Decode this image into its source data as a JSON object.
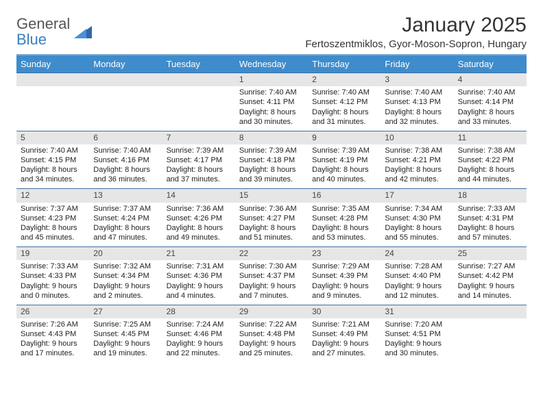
{
  "brand": {
    "word1": "General",
    "word2": "Blue"
  },
  "title": "January 2025",
  "location": "Fertoszentmiklos, Gyor-Moson-Sopron, Hungary",
  "colors": {
    "header_bg": "#3e8ccc",
    "header_text": "#ffffff",
    "daybar_bg": "#e6e6e6",
    "rule": "#3e6fa0",
    "brand_accent": "#3a7fbf"
  },
  "fonts": {
    "title_pt": 30,
    "location_pt": 15,
    "dayhead_pt": 13,
    "body_pt": 11
  },
  "weekdays": [
    "Sunday",
    "Monday",
    "Tuesday",
    "Wednesday",
    "Thursday",
    "Friday",
    "Saturday"
  ],
  "weeks": [
    [
      {
        "n": "",
        "sr": "",
        "ss": "",
        "d1": "",
        "d2": ""
      },
      {
        "n": "",
        "sr": "",
        "ss": "",
        "d1": "",
        "d2": ""
      },
      {
        "n": "",
        "sr": "",
        "ss": "",
        "d1": "",
        "d2": ""
      },
      {
        "n": "1",
        "sr": "Sunrise: 7:40 AM",
        "ss": "Sunset: 4:11 PM",
        "d1": "Daylight: 8 hours",
        "d2": "and 30 minutes."
      },
      {
        "n": "2",
        "sr": "Sunrise: 7:40 AM",
        "ss": "Sunset: 4:12 PM",
        "d1": "Daylight: 8 hours",
        "d2": "and 31 minutes."
      },
      {
        "n": "3",
        "sr": "Sunrise: 7:40 AM",
        "ss": "Sunset: 4:13 PM",
        "d1": "Daylight: 8 hours",
        "d2": "and 32 minutes."
      },
      {
        "n": "4",
        "sr": "Sunrise: 7:40 AM",
        "ss": "Sunset: 4:14 PM",
        "d1": "Daylight: 8 hours",
        "d2": "and 33 minutes."
      }
    ],
    [
      {
        "n": "5",
        "sr": "Sunrise: 7:40 AM",
        "ss": "Sunset: 4:15 PM",
        "d1": "Daylight: 8 hours",
        "d2": "and 34 minutes."
      },
      {
        "n": "6",
        "sr": "Sunrise: 7:40 AM",
        "ss": "Sunset: 4:16 PM",
        "d1": "Daylight: 8 hours",
        "d2": "and 36 minutes."
      },
      {
        "n": "7",
        "sr": "Sunrise: 7:39 AM",
        "ss": "Sunset: 4:17 PM",
        "d1": "Daylight: 8 hours",
        "d2": "and 37 minutes."
      },
      {
        "n": "8",
        "sr": "Sunrise: 7:39 AM",
        "ss": "Sunset: 4:18 PM",
        "d1": "Daylight: 8 hours",
        "d2": "and 39 minutes."
      },
      {
        "n": "9",
        "sr": "Sunrise: 7:39 AM",
        "ss": "Sunset: 4:19 PM",
        "d1": "Daylight: 8 hours",
        "d2": "and 40 minutes."
      },
      {
        "n": "10",
        "sr": "Sunrise: 7:38 AM",
        "ss": "Sunset: 4:21 PM",
        "d1": "Daylight: 8 hours",
        "d2": "and 42 minutes."
      },
      {
        "n": "11",
        "sr": "Sunrise: 7:38 AM",
        "ss": "Sunset: 4:22 PM",
        "d1": "Daylight: 8 hours",
        "d2": "and 44 minutes."
      }
    ],
    [
      {
        "n": "12",
        "sr": "Sunrise: 7:37 AM",
        "ss": "Sunset: 4:23 PM",
        "d1": "Daylight: 8 hours",
        "d2": "and 45 minutes."
      },
      {
        "n": "13",
        "sr": "Sunrise: 7:37 AM",
        "ss": "Sunset: 4:24 PM",
        "d1": "Daylight: 8 hours",
        "d2": "and 47 minutes."
      },
      {
        "n": "14",
        "sr": "Sunrise: 7:36 AM",
        "ss": "Sunset: 4:26 PM",
        "d1": "Daylight: 8 hours",
        "d2": "and 49 minutes."
      },
      {
        "n": "15",
        "sr": "Sunrise: 7:36 AM",
        "ss": "Sunset: 4:27 PM",
        "d1": "Daylight: 8 hours",
        "d2": "and 51 minutes."
      },
      {
        "n": "16",
        "sr": "Sunrise: 7:35 AM",
        "ss": "Sunset: 4:28 PM",
        "d1": "Daylight: 8 hours",
        "d2": "and 53 minutes."
      },
      {
        "n": "17",
        "sr": "Sunrise: 7:34 AM",
        "ss": "Sunset: 4:30 PM",
        "d1": "Daylight: 8 hours",
        "d2": "and 55 minutes."
      },
      {
        "n": "18",
        "sr": "Sunrise: 7:33 AM",
        "ss": "Sunset: 4:31 PM",
        "d1": "Daylight: 8 hours",
        "d2": "and 57 minutes."
      }
    ],
    [
      {
        "n": "19",
        "sr": "Sunrise: 7:33 AM",
        "ss": "Sunset: 4:33 PM",
        "d1": "Daylight: 9 hours",
        "d2": "and 0 minutes."
      },
      {
        "n": "20",
        "sr": "Sunrise: 7:32 AM",
        "ss": "Sunset: 4:34 PM",
        "d1": "Daylight: 9 hours",
        "d2": "and 2 minutes."
      },
      {
        "n": "21",
        "sr": "Sunrise: 7:31 AM",
        "ss": "Sunset: 4:36 PM",
        "d1": "Daylight: 9 hours",
        "d2": "and 4 minutes."
      },
      {
        "n": "22",
        "sr": "Sunrise: 7:30 AM",
        "ss": "Sunset: 4:37 PM",
        "d1": "Daylight: 9 hours",
        "d2": "and 7 minutes."
      },
      {
        "n": "23",
        "sr": "Sunrise: 7:29 AM",
        "ss": "Sunset: 4:39 PM",
        "d1": "Daylight: 9 hours",
        "d2": "and 9 minutes."
      },
      {
        "n": "24",
        "sr": "Sunrise: 7:28 AM",
        "ss": "Sunset: 4:40 PM",
        "d1": "Daylight: 9 hours",
        "d2": "and 12 minutes."
      },
      {
        "n": "25",
        "sr": "Sunrise: 7:27 AM",
        "ss": "Sunset: 4:42 PM",
        "d1": "Daylight: 9 hours",
        "d2": "and 14 minutes."
      }
    ],
    [
      {
        "n": "26",
        "sr": "Sunrise: 7:26 AM",
        "ss": "Sunset: 4:43 PM",
        "d1": "Daylight: 9 hours",
        "d2": "and 17 minutes."
      },
      {
        "n": "27",
        "sr": "Sunrise: 7:25 AM",
        "ss": "Sunset: 4:45 PM",
        "d1": "Daylight: 9 hours",
        "d2": "and 19 minutes."
      },
      {
        "n": "28",
        "sr": "Sunrise: 7:24 AM",
        "ss": "Sunset: 4:46 PM",
        "d1": "Daylight: 9 hours",
        "d2": "and 22 minutes."
      },
      {
        "n": "29",
        "sr": "Sunrise: 7:22 AM",
        "ss": "Sunset: 4:48 PM",
        "d1": "Daylight: 9 hours",
        "d2": "and 25 minutes."
      },
      {
        "n": "30",
        "sr": "Sunrise: 7:21 AM",
        "ss": "Sunset: 4:49 PM",
        "d1": "Daylight: 9 hours",
        "d2": "and 27 minutes."
      },
      {
        "n": "31",
        "sr": "Sunrise: 7:20 AM",
        "ss": "Sunset: 4:51 PM",
        "d1": "Daylight: 9 hours",
        "d2": "and 30 minutes."
      },
      {
        "n": "",
        "sr": "",
        "ss": "",
        "d1": "",
        "d2": ""
      }
    ]
  ]
}
